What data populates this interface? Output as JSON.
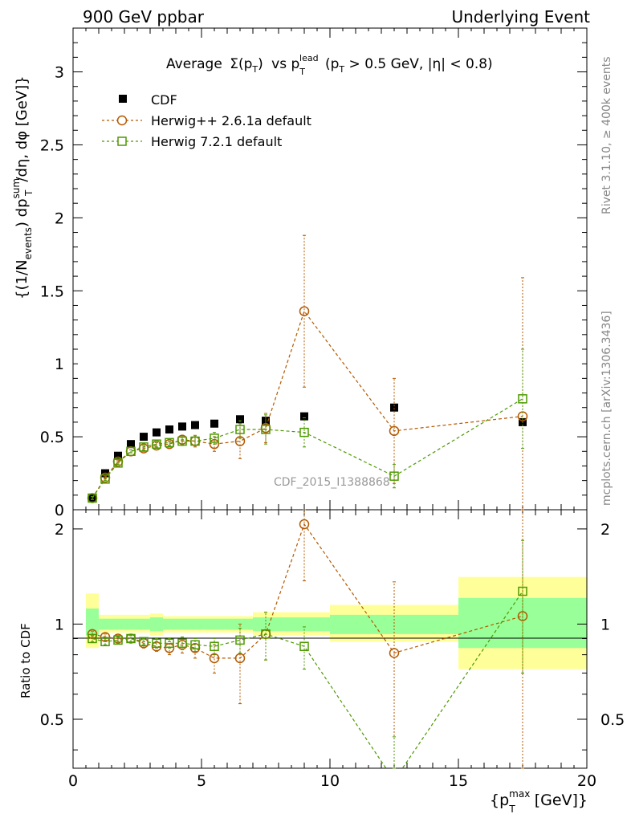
{
  "header": {
    "left": "900 GeV ppbar",
    "right": "Underlying Event"
  },
  "side_labels": {
    "rivet": "Rivet 3.1.10, ≥ 400k events",
    "mcplots": "mcplots.cern.ch [arXiv:1306.3436]"
  },
  "watermark": "CDF_2015_I1388868",
  "colors": {
    "herwig_pp": "#b35900",
    "herwig7": "#4d9900",
    "band_inner": "#99ff99",
    "band_outer": "#ffff99"
  },
  "legend": {
    "cdf": "CDF",
    "herwig_pp": "Herwig++ 2.6.1a default",
    "herwig7": "Herwig 7.2.1 default"
  },
  "chart_data": [
    {
      "type": "scatter",
      "panel": "main",
      "title_parts": {
        "average": "Average",
        "sigma": "Σ(p",
        "sub_T": "T",
        "close": ")",
        "vs": "vs p",
        "sup_lead": "lead",
        "cut": "(p",
        "cut_rest": " > 0.5 GeV, |η| < 0.8)"
      },
      "ylabel_parts": {
        "a": "{(1/N",
        "sub_events": "events",
        "b": ") dp",
        "sup_sum": "sum",
        "sub_T": "T",
        "c": "/dη, dφ [GeV]}"
      },
      "xlim": [
        0,
        20
      ],
      "ylim": [
        0,
        3.3
      ],
      "yticks": [
        0,
        0.5,
        1,
        1.5,
        2,
        2.5,
        3
      ],
      "series": [
        {
          "name": "CDF",
          "marker": "filled-square",
          "points": [
            [
              0.75,
              0.08
            ],
            [
              1.25,
              0.25
            ],
            [
              1.75,
              0.37
            ],
            [
              2.25,
              0.45
            ],
            [
              2.75,
              0.5
            ],
            [
              3.25,
              0.53
            ],
            [
              3.75,
              0.55
            ],
            [
              4.25,
              0.57
            ],
            [
              4.75,
              0.58
            ],
            [
              5.5,
              0.59
            ],
            [
              6.5,
              0.62
            ],
            [
              7.5,
              0.61
            ],
            [
              9.0,
              0.64
            ],
            [
              12.5,
              0.7
            ],
            [
              17.5,
              0.6
            ]
          ]
        },
        {
          "name": "Herwig++ 2.6.1a default",
          "marker": "open-circle",
          "points": [
            [
              0.75,
              0.08,
              0.01
            ],
            [
              1.25,
              0.22,
              0.01
            ],
            [
              1.75,
              0.33,
              0.01
            ],
            [
              2.25,
              0.4,
              0.01
            ],
            [
              2.75,
              0.42,
              0.02
            ],
            [
              3.25,
              0.44,
              0.02
            ],
            [
              3.75,
              0.45,
              0.02
            ],
            [
              4.25,
              0.48,
              0.03
            ],
            [
              4.75,
              0.47,
              0.04
            ],
            [
              5.5,
              0.45,
              0.05
            ],
            [
              6.5,
              0.47,
              0.12
            ],
            [
              7.5,
              0.56,
              0.1
            ],
            [
              9.0,
              1.36,
              0.52
            ],
            [
              12.5,
              0.54,
              0.36
            ],
            [
              17.5,
              0.64,
              0.95
            ]
          ]
        },
        {
          "name": "Herwig 7.2.1 default",
          "marker": "open-square",
          "points": [
            [
              0.75,
              0.08,
              0.01
            ],
            [
              1.25,
              0.21,
              0.01
            ],
            [
              1.75,
              0.32,
              0.01
            ],
            [
              2.25,
              0.4,
              0.01
            ],
            [
              2.75,
              0.43,
              0.02
            ],
            [
              3.25,
              0.45,
              0.02
            ],
            [
              3.75,
              0.46,
              0.02
            ],
            [
              4.25,
              0.47,
              0.03
            ],
            [
              4.75,
              0.47,
              0.03
            ],
            [
              5.5,
              0.49,
              0.04
            ],
            [
              6.5,
              0.55,
              0.06
            ],
            [
              7.5,
              0.55,
              0.1
            ],
            [
              9.0,
              0.53,
              0.1
            ],
            [
              12.5,
              0.23,
              0.08
            ],
            [
              17.5,
              0.76,
              0.34
            ]
          ]
        }
      ]
    },
    {
      "type": "scatter",
      "panel": "ratio",
      "ylabel": "Ratio to CDF",
      "xlabel_parts": {
        "a": "{p",
        "sup_max": "max",
        "sub_T": "T",
        "b": " [GeV]}"
      },
      "xlim": [
        0,
        20
      ],
      "ylim": [
        0.35,
        2.3
      ],
      "yticks": [
        0.5,
        1,
        2
      ],
      "xticks": [
        0,
        5,
        10,
        15,
        20
      ],
      "bands": [
        {
          "x": [
            0.5,
            1.0
          ],
          "inner": [
            0.92,
            1.12
          ],
          "outer": [
            0.84,
            1.25
          ]
        },
        {
          "x": [
            1.0,
            3.0
          ],
          "inner": [
            0.96,
            1.04
          ],
          "outer": [
            0.94,
            1.07
          ]
        },
        {
          "x": [
            3.0,
            3.5
          ],
          "inner": [
            0.95,
            1.05
          ],
          "outer": [
            0.92,
            1.08
          ]
        },
        {
          "x": [
            3.5,
            7.0
          ],
          "inner": [
            0.96,
            1.04
          ],
          "outer": [
            0.94,
            1.06
          ]
        },
        {
          "x": [
            7.0,
            10.0
          ],
          "inner": [
            0.95,
            1.05
          ],
          "outer": [
            0.92,
            1.09
          ]
        },
        {
          "x": [
            10.0,
            15.0
          ],
          "inner": [
            0.93,
            1.07
          ],
          "outer": [
            0.88,
            1.15
          ]
        },
        {
          "x": [
            15.0,
            20.0
          ],
          "inner": [
            0.84,
            1.21
          ],
          "outer": [
            0.72,
            1.41
          ]
        }
      ],
      "series": [
        {
          "name": "Herwig++ 2.6.1a default",
          "points": [
            [
              0.75,
              0.93,
              0.02
            ],
            [
              1.25,
              0.91,
              0.02
            ],
            [
              1.75,
              0.9,
              0.02
            ],
            [
              2.25,
              0.9,
              0.02
            ],
            [
              2.75,
              0.87,
              0.03
            ],
            [
              3.25,
              0.85,
              0.03
            ],
            [
              3.75,
              0.84,
              0.04
            ],
            [
              4.25,
              0.86,
              0.05
            ],
            [
              4.75,
              0.84,
              0.06
            ],
            [
              5.5,
              0.78,
              0.08
            ],
            [
              6.5,
              0.78,
              0.22
            ],
            [
              7.5,
              0.93,
              0.16
            ],
            [
              9.0,
              2.07,
              0.7
            ],
            [
              12.5,
              0.81,
              0.55
            ],
            [
              17.5,
              1.06,
              1.3
            ]
          ]
        },
        {
          "name": "Herwig 7.2.1 default",
          "points": [
            [
              0.75,
              0.9,
              0.02
            ],
            [
              1.25,
              0.88,
              0.02
            ],
            [
              1.75,
              0.89,
              0.02
            ],
            [
              2.25,
              0.9,
              0.02
            ],
            [
              2.75,
              0.88,
              0.02
            ],
            [
              3.25,
              0.87,
              0.03
            ],
            [
              3.75,
              0.87,
              0.03
            ],
            [
              4.25,
              0.87,
              0.04
            ],
            [
              4.75,
              0.86,
              0.04
            ],
            [
              5.5,
              0.85,
              0.05
            ],
            [
              6.5,
              0.89,
              0.08
            ],
            [
              7.5,
              0.93,
              0.16
            ],
            [
              9.0,
              0.85,
              0.13
            ],
            [
              12.5,
              0.32,
              0.12
            ],
            [
              17.5,
              1.27,
              0.57
            ]
          ]
        }
      ]
    }
  ]
}
